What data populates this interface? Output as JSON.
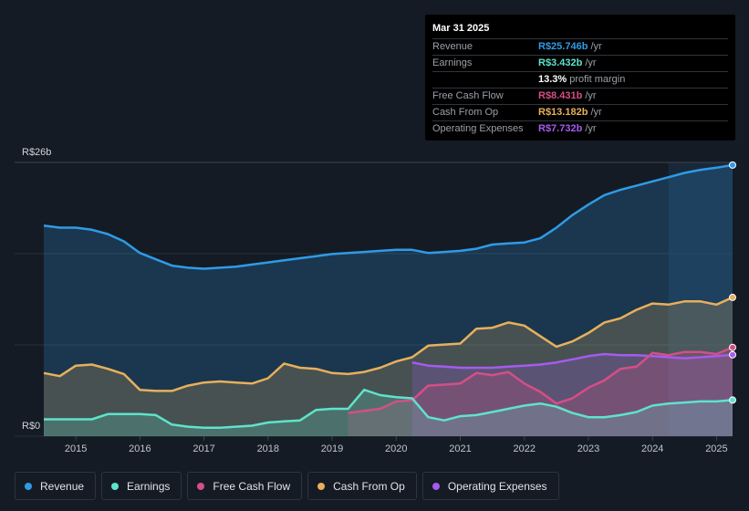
{
  "tooltip": {
    "date": "Mar 31 2025",
    "rows": [
      {
        "label": "Revenue",
        "value": "R$25.746b",
        "unit": "/yr",
        "color": "#2f9be6"
      },
      {
        "label": "Earnings",
        "value": "R$3.432b",
        "unit": "/yr",
        "color": "#5ee3cc"
      },
      {
        "label": "",
        "value": "13.3%",
        "unit": "profit margin",
        "color": "#ffffff"
      },
      {
        "label": "Free Cash Flow",
        "value": "R$8.431b",
        "unit": "/yr",
        "color": "#d44f86"
      },
      {
        "label": "Cash From Op",
        "value": "R$13.182b",
        "unit": "/yr",
        "color": "#e8b05c"
      },
      {
        "label": "Operating Expenses",
        "value": "R$7.732b",
        "unit": "/yr",
        "color": "#a55bef"
      }
    ]
  },
  "legend": [
    {
      "label": "Revenue",
      "color": "#2f9be6"
    },
    {
      "label": "Earnings",
      "color": "#5ee3cc"
    },
    {
      "label": "Free Cash Flow",
      "color": "#d44f86"
    },
    {
      "label": "Cash From Op",
      "color": "#e8b05c"
    },
    {
      "label": "Operating Expenses",
      "color": "#a55bef"
    }
  ],
  "chart_data": {
    "type": "area",
    "title": "",
    "xlabel": "",
    "ylabel": "",
    "y_top_label": "R$26b",
    "y_bottom_label": "R$0",
    "ylim": [
      0,
      26
    ],
    "xlim": [
      2014.5,
      2025.25
    ],
    "x_ticks": [
      "2015",
      "2016",
      "2017",
      "2018",
      "2019",
      "2020",
      "2021",
      "2022",
      "2023",
      "2024",
      "2025"
    ],
    "series": [
      {
        "name": "Revenue",
        "color": "#2f9be6",
        "points": [
          [
            2014.5,
            20.0
          ],
          [
            2014.75,
            19.8
          ],
          [
            2015.0,
            19.8
          ],
          [
            2015.25,
            19.6
          ],
          [
            2015.5,
            19.2
          ],
          [
            2015.75,
            18.5
          ],
          [
            2016.0,
            17.4
          ],
          [
            2016.25,
            16.8
          ],
          [
            2016.5,
            16.2
          ],
          [
            2016.75,
            16.0
          ],
          [
            2017.0,
            15.9
          ],
          [
            2017.25,
            16.0
          ],
          [
            2017.5,
            16.1
          ],
          [
            2017.75,
            16.3
          ],
          [
            2018.0,
            16.5
          ],
          [
            2018.25,
            16.7
          ],
          [
            2018.5,
            16.9
          ],
          [
            2018.75,
            17.1
          ],
          [
            2019.0,
            17.3
          ],
          [
            2019.25,
            17.4
          ],
          [
            2019.5,
            17.5
          ],
          [
            2019.75,
            17.6
          ],
          [
            2020.0,
            17.7
          ],
          [
            2020.25,
            17.7
          ],
          [
            2020.5,
            17.4
          ],
          [
            2020.75,
            17.5
          ],
          [
            2021.0,
            17.6
          ],
          [
            2021.25,
            17.8
          ],
          [
            2021.5,
            18.2
          ],
          [
            2021.75,
            18.3
          ],
          [
            2022.0,
            18.4
          ],
          [
            2022.25,
            18.8
          ],
          [
            2022.5,
            19.8
          ],
          [
            2022.75,
            21.0
          ],
          [
            2023.0,
            22.0
          ],
          [
            2023.25,
            22.9
          ],
          [
            2023.5,
            23.4
          ],
          [
            2023.75,
            23.8
          ],
          [
            2024.0,
            24.2
          ],
          [
            2024.25,
            24.6
          ],
          [
            2024.5,
            25.0
          ],
          [
            2024.75,
            25.3
          ],
          [
            2025.0,
            25.5
          ],
          [
            2025.25,
            25.75
          ]
        ]
      },
      {
        "name": "Cash From Op",
        "color": "#e8b05c",
        "points": [
          [
            2014.5,
            6.0
          ],
          [
            2014.75,
            5.7
          ],
          [
            2015.0,
            6.7
          ],
          [
            2015.25,
            6.8
          ],
          [
            2015.5,
            6.4
          ],
          [
            2015.75,
            5.9
          ],
          [
            2016.0,
            4.4
          ],
          [
            2016.25,
            4.3
          ],
          [
            2016.5,
            4.3
          ],
          [
            2016.75,
            4.8
          ],
          [
            2017.0,
            5.1
          ],
          [
            2017.25,
            5.2
          ],
          [
            2017.5,
            5.1
          ],
          [
            2017.75,
            5.0
          ],
          [
            2018.0,
            5.5
          ],
          [
            2018.25,
            6.9
          ],
          [
            2018.5,
            6.5
          ],
          [
            2018.75,
            6.4
          ],
          [
            2019.0,
            6.0
          ],
          [
            2019.25,
            5.9
          ],
          [
            2019.5,
            6.1
          ],
          [
            2019.75,
            6.5
          ],
          [
            2020.0,
            7.1
          ],
          [
            2020.25,
            7.5
          ],
          [
            2020.5,
            8.6
          ],
          [
            2020.75,
            8.7
          ],
          [
            2021.0,
            8.8
          ],
          [
            2021.25,
            10.2
          ],
          [
            2021.5,
            10.3
          ],
          [
            2021.75,
            10.8
          ],
          [
            2022.0,
            10.5
          ],
          [
            2022.25,
            9.5
          ],
          [
            2022.5,
            8.5
          ],
          [
            2022.75,
            9.0
          ],
          [
            2023.0,
            9.8
          ],
          [
            2023.25,
            10.8
          ],
          [
            2023.5,
            11.2
          ],
          [
            2023.75,
            12.0
          ],
          [
            2024.0,
            12.6
          ],
          [
            2024.25,
            12.5
          ],
          [
            2024.5,
            12.8
          ],
          [
            2024.75,
            12.8
          ],
          [
            2025.0,
            12.5
          ],
          [
            2025.25,
            13.18
          ]
        ]
      },
      {
        "name": "Operating Expenses",
        "color": "#a55bef",
        "points": [
          [
            2020.25,
            7.0
          ],
          [
            2020.5,
            6.7
          ],
          [
            2020.75,
            6.6
          ],
          [
            2021.0,
            6.5
          ],
          [
            2021.25,
            6.5
          ],
          [
            2021.5,
            6.5
          ],
          [
            2021.75,
            6.6
          ],
          [
            2022.0,
            6.7
          ],
          [
            2022.25,
            6.8
          ],
          [
            2022.5,
            7.0
          ],
          [
            2022.75,
            7.3
          ],
          [
            2023.0,
            7.6
          ],
          [
            2023.25,
            7.8
          ],
          [
            2023.5,
            7.7
          ],
          [
            2023.75,
            7.7
          ],
          [
            2024.0,
            7.6
          ],
          [
            2024.25,
            7.5
          ],
          [
            2024.5,
            7.4
          ],
          [
            2024.75,
            7.5
          ],
          [
            2025.0,
            7.6
          ],
          [
            2025.25,
            7.73
          ]
        ]
      },
      {
        "name": "Free Cash Flow",
        "color": "#d44f86",
        "points": [
          [
            2019.25,
            2.2
          ],
          [
            2019.5,
            2.4
          ],
          [
            2019.75,
            2.6
          ],
          [
            2020.0,
            3.3
          ],
          [
            2020.25,
            3.4
          ],
          [
            2020.5,
            4.8
          ],
          [
            2020.75,
            4.9
          ],
          [
            2021.0,
            5.0
          ],
          [
            2021.25,
            6.0
          ],
          [
            2021.5,
            5.8
          ],
          [
            2021.75,
            6.1
          ],
          [
            2022.0,
            5.0
          ],
          [
            2022.25,
            4.2
          ],
          [
            2022.5,
            3.1
          ],
          [
            2022.75,
            3.6
          ],
          [
            2023.0,
            4.6
          ],
          [
            2023.25,
            5.3
          ],
          [
            2023.5,
            6.4
          ],
          [
            2023.75,
            6.6
          ],
          [
            2024.0,
            7.9
          ],
          [
            2024.25,
            7.7
          ],
          [
            2024.5,
            8.0
          ],
          [
            2024.75,
            8.0
          ],
          [
            2025.0,
            7.8
          ],
          [
            2025.25,
            8.43
          ]
        ]
      },
      {
        "name": "Earnings",
        "color": "#5ee3cc",
        "points": [
          [
            2014.5,
            1.6
          ],
          [
            2014.75,
            1.6
          ],
          [
            2015.0,
            1.6
          ],
          [
            2015.25,
            1.6
          ],
          [
            2015.5,
            2.1
          ],
          [
            2015.75,
            2.1
          ],
          [
            2016.0,
            2.1
          ],
          [
            2016.25,
            2.0
          ],
          [
            2016.5,
            1.1
          ],
          [
            2016.75,
            0.9
          ],
          [
            2017.0,
            0.8
          ],
          [
            2017.25,
            0.8
          ],
          [
            2017.5,
            0.9
          ],
          [
            2017.75,
            1.0
          ],
          [
            2018.0,
            1.3
          ],
          [
            2018.25,
            1.4
          ],
          [
            2018.5,
            1.5
          ],
          [
            2018.75,
            2.5
          ],
          [
            2019.0,
            2.6
          ],
          [
            2019.25,
            2.6
          ],
          [
            2019.5,
            4.4
          ],
          [
            2019.75,
            3.9
          ],
          [
            2020.0,
            3.7
          ],
          [
            2020.25,
            3.6
          ],
          [
            2020.5,
            1.8
          ],
          [
            2020.75,
            1.5
          ],
          [
            2021.0,
            1.9
          ],
          [
            2021.25,
            2.0
          ],
          [
            2021.5,
            2.3
          ],
          [
            2021.75,
            2.6
          ],
          [
            2022.0,
            2.9
          ],
          [
            2022.25,
            3.1
          ],
          [
            2022.5,
            2.8
          ],
          [
            2022.75,
            2.2
          ],
          [
            2023.0,
            1.8
          ],
          [
            2023.25,
            1.8
          ],
          [
            2023.5,
            2.0
          ],
          [
            2023.75,
            2.3
          ],
          [
            2024.0,
            2.9
          ],
          [
            2024.25,
            3.1
          ],
          [
            2024.5,
            3.2
          ],
          [
            2024.75,
            3.3
          ],
          [
            2025.0,
            3.3
          ],
          [
            2025.25,
            3.43
          ]
        ]
      }
    ]
  }
}
